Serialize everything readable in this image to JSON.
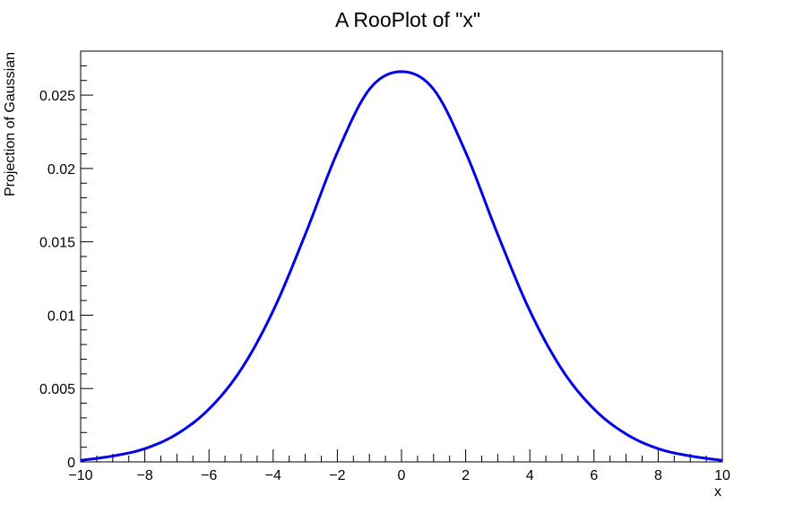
{
  "chart_data": {
    "type": "line",
    "title": "A RooPlot of \"x\"",
    "xlabel": "x",
    "ylabel": "Projection of Gaussian",
    "xlim": [
      -10,
      10
    ],
    "ylim": [
      0,
      0.028
    ],
    "x_ticks": [
      -10,
      -8,
      -6,
      -4,
      -2,
      0,
      2,
      4,
      6,
      8,
      10
    ],
    "x_tick_labels": [
      "−10",
      "−8",
      "−6",
      "−4",
      "−2",
      "0",
      "2",
      "4",
      "6",
      "8",
      "10"
    ],
    "y_ticks": [
      0,
      0.005,
      0.01,
      0.015,
      0.02,
      0.025
    ],
    "y_tick_labels": [
      "0",
      "0.005",
      "0.01",
      "0.015",
      "0.02",
      "0.025"
    ],
    "grid": false,
    "legend": "none",
    "series": [
      {
        "color": "#0000ee",
        "x": [
          -10,
          -9,
          -8,
          -7,
          -6,
          -5,
          -4,
          -3,
          -2,
          -1,
          0,
          1,
          2,
          3,
          4,
          5,
          6,
          7,
          8,
          9,
          10
        ],
        "values": [
          0.0001,
          0.0004,
          0.0009,
          0.0019,
          0.0036,
          0.0063,
          0.0103,
          0.0155,
          0.0211,
          0.0254,
          0.0266,
          0.0254,
          0.0211,
          0.0155,
          0.0103,
          0.0063,
          0.0036,
          0.0019,
          0.0009,
          0.0004,
          0.0001
        ]
      }
    ]
  }
}
